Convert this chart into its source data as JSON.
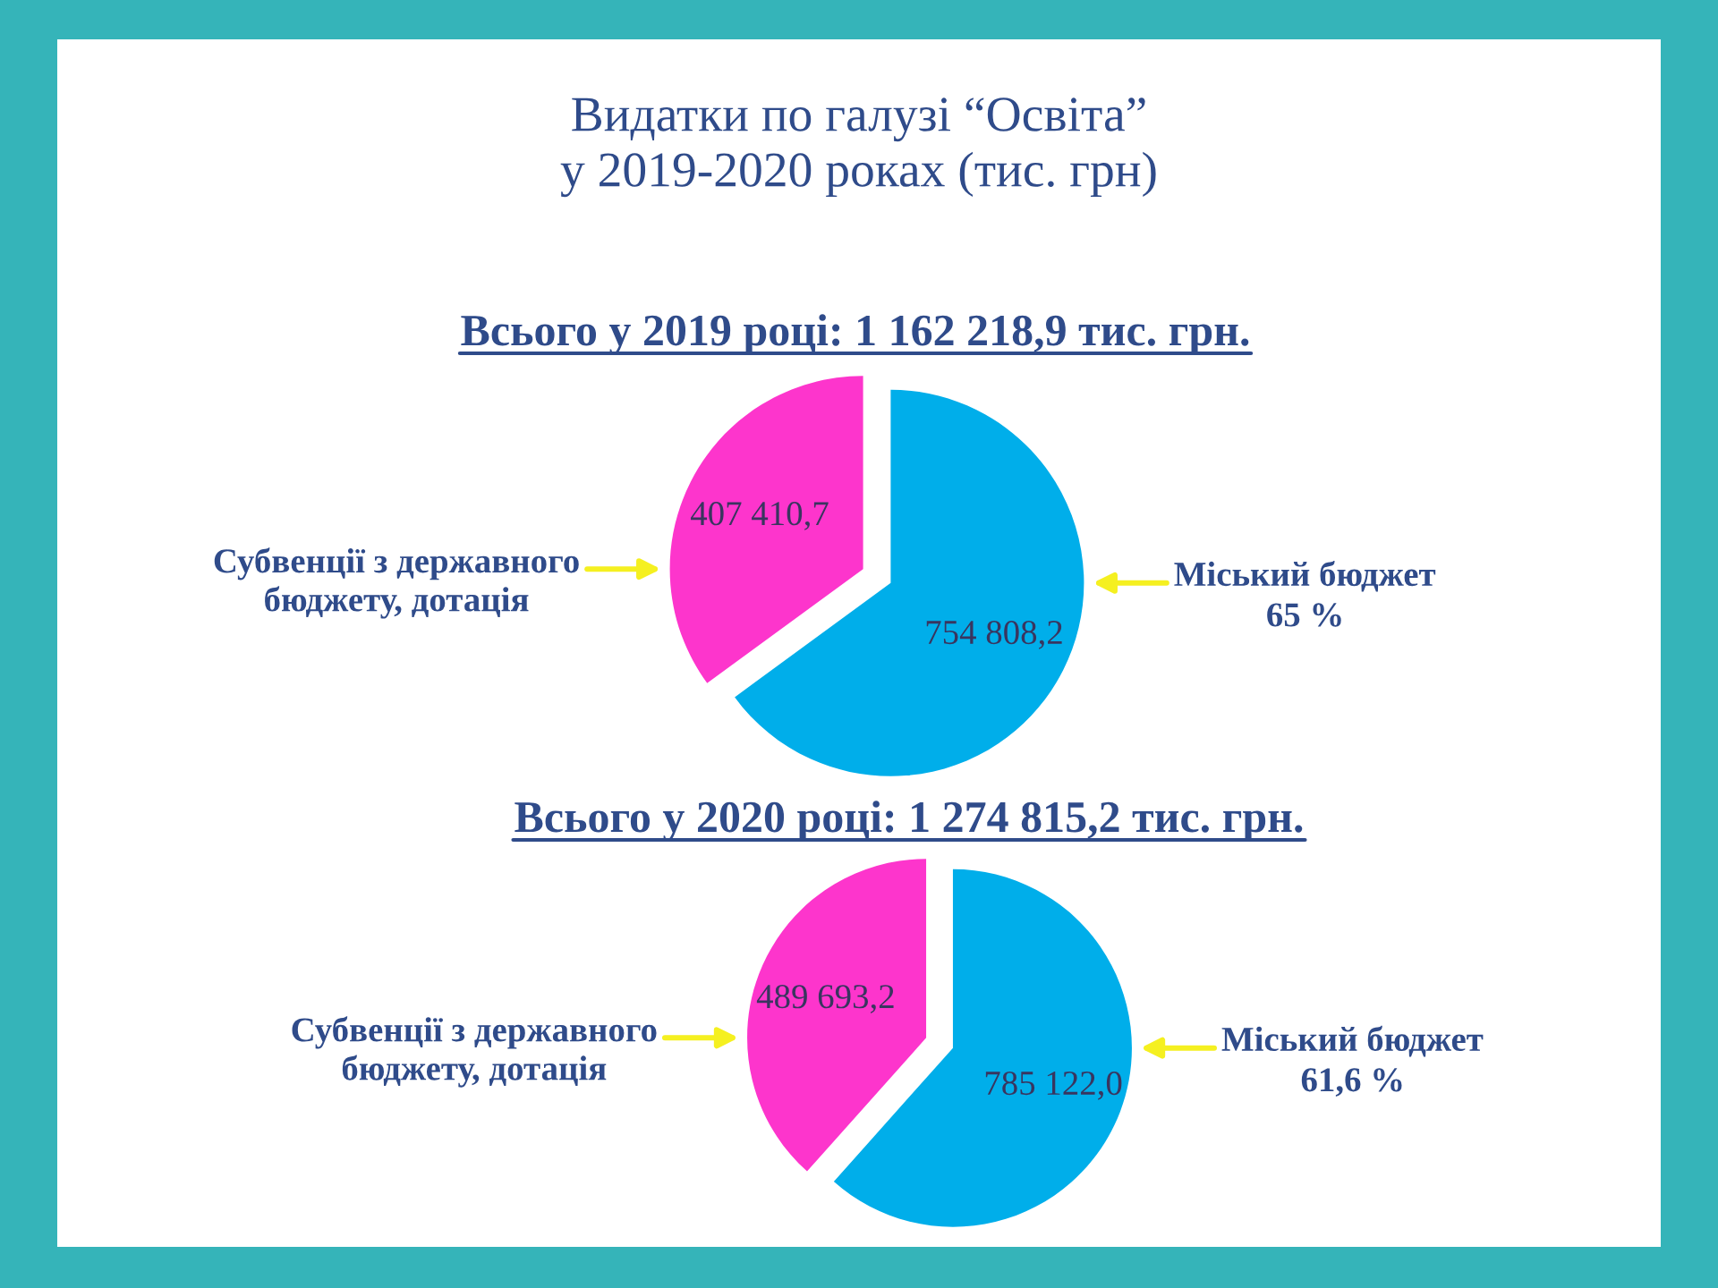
{
  "chart_data": [
    {
      "type": "pie",
      "title": "Видатки по галузі “Освіта”\nу 2019-2020 роках (тис. грн)",
      "subtitle": "Всього у 2019 році: 1 162 218,9 тис. грн.",
      "categories": [
        "Субвенції з державного\nбюджету, дотація",
        "Міський бюджет"
      ],
      "values": [
        407410.7,
        754808.2
      ],
      "colors": [
        "#fd35cc",
        "#00aeea"
      ],
      "value_labels": [
        "407 410,7",
        "754 808,2"
      ],
      "annotations": [
        {
          "text": "65 %",
          "x": "Міський бюджет"
        }
      ]
    },
    {
      "type": "pie",
      "subtitle": "Всього у 2020 році: 1 274 815,2 тис. грн.",
      "categories": [
        "Субвенції з державного\nбюджету, дотація",
        "Міський бюджет"
      ],
      "values": [
        489693.2,
        785122.0
      ],
      "colors": [
        "#fd35cc",
        "#00aeea"
      ],
      "value_labels": [
        "489 693,2",
        "785 122,0"
      ],
      "annotations": [
        {
          "text": "61,6 %",
          "x": "Міський бюджет"
        }
      ]
    }
  ]
}
